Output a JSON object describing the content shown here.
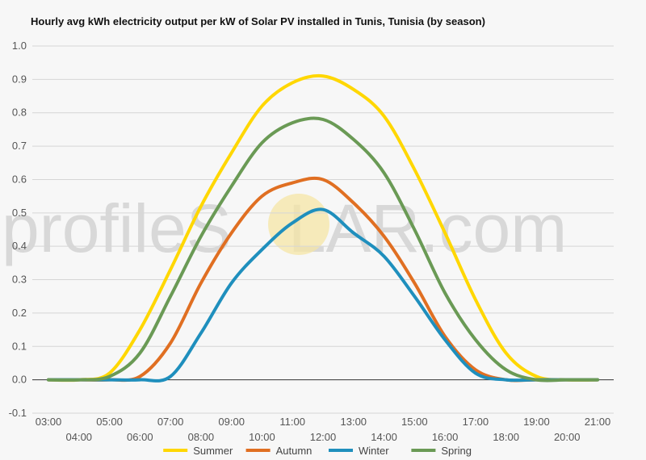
{
  "title": "Hourly avg kWh electricity output per kW of Solar PV installed in Tunis, Tunisia (by season)",
  "watermark": {
    "prefix": "profileS",
    "suffix": "LAR.com",
    "sun_color": "#f6e6a6"
  },
  "chart_data": {
    "type": "line",
    "title": "Hourly avg kWh electricity output per kW of Solar PV installed in Tunis, Tunisia (by season)",
    "xlabel": "",
    "ylabel": "",
    "x": [
      "03:00",
      "04:00",
      "05:00",
      "06:00",
      "07:00",
      "08:00",
      "09:00",
      "10:00",
      "11:00",
      "12:00",
      "13:00",
      "14:00",
      "15:00",
      "16:00",
      "17:00",
      "18:00",
      "19:00",
      "20:00",
      "21:00"
    ],
    "xlim": [
      "03:00",
      "21:00"
    ],
    "ylim": [
      -0.1,
      1.0
    ],
    "yticks": [
      "-0.1",
      "0.0",
      "0.1",
      "0.2",
      "0.3",
      "0.4",
      "0.5",
      "0.6",
      "0.7",
      "0.8",
      "0.9",
      "1.0"
    ],
    "grid": true,
    "legend_position": "bottom",
    "series": [
      {
        "name": "Summer",
        "color": "#ffd700",
        "values": [
          0,
          0,
          0.02,
          0.15,
          0.33,
          0.52,
          0.68,
          0.82,
          0.89,
          0.91,
          0.87,
          0.79,
          0.63,
          0.44,
          0.24,
          0.08,
          0.01,
          0,
          0
        ]
      },
      {
        "name": "Autumn",
        "color": "#e06f22",
        "values": [
          0,
          0,
          0,
          0.01,
          0.11,
          0.29,
          0.44,
          0.55,
          0.59,
          0.6,
          0.53,
          0.43,
          0.29,
          0.13,
          0.03,
          0,
          0,
          0,
          0
        ]
      },
      {
        "name": "Winter",
        "color": "#1f8fbd",
        "values": [
          0,
          0,
          0,
          0,
          0.01,
          0.14,
          0.29,
          0.39,
          0.47,
          0.51,
          0.44,
          0.37,
          0.25,
          0.12,
          0.02,
          0,
          0,
          0,
          0
        ]
      },
      {
        "name": "Spring",
        "color": "#6a9a55",
        "values": [
          0,
          0,
          0.01,
          0.08,
          0.25,
          0.43,
          0.58,
          0.71,
          0.77,
          0.78,
          0.72,
          0.62,
          0.45,
          0.26,
          0.12,
          0.03,
          0,
          0,
          0
        ]
      }
    ]
  }
}
